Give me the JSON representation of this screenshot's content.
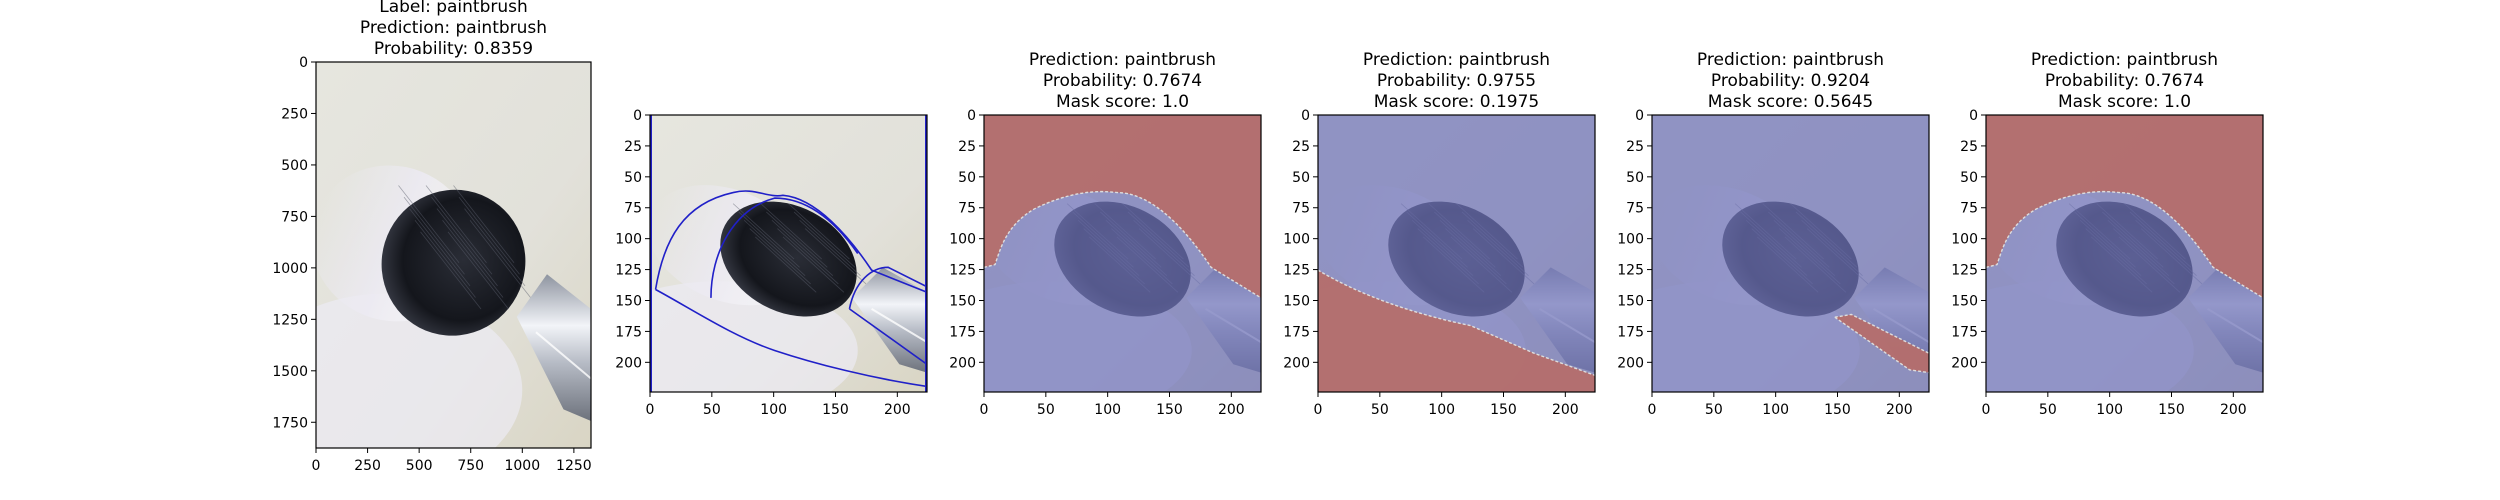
{
  "figure": {
    "palette": {
      "background_wall": "#e2e1da",
      "bristle_dark": "#14161c",
      "bristle_light": "#eceaf2",
      "ferrule_metal": "#b7bcc6",
      "contour_line": "#2020c8",
      "mask_kept": "#6f73b8",
      "mask_removed": "#b56e6c",
      "mask_boundary": "#dddddd"
    }
  },
  "chart_data": [
    {
      "type": "image",
      "panel": "original",
      "title_lines": [
        "Label: paintbrush",
        "Prediction: paintbrush",
        "Probability: 0.8359"
      ],
      "xlim": [
        0,
        1333
      ],
      "ylim": [
        1875,
        0
      ],
      "xticks": [
        0,
        250,
        500,
        750,
        1000,
        1250
      ],
      "yticks": [
        0,
        250,
        500,
        750,
        1000,
        1250,
        1500,
        1750
      ],
      "xtick_labels": [
        "0",
        "250",
        "500",
        "750",
        "1000",
        "1250"
      ],
      "ytick_labels": [
        "0",
        "250",
        "500",
        "750",
        "1000",
        "1250",
        "1500",
        "1750"
      ]
    },
    {
      "type": "image",
      "panel": "segment-contours",
      "title_lines": [],
      "xlim": [
        0,
        224
      ],
      "ylim": [
        224,
        0
      ],
      "xticks": [
        0,
        50,
        100,
        150,
        200
      ],
      "yticks": [
        0,
        25,
        50,
        75,
        100,
        125,
        150,
        175,
        200
      ],
      "xtick_labels": [
        "0",
        "50",
        "100",
        "150",
        "200"
      ],
      "ytick_labels": [
        "0",
        "25",
        "50",
        "75",
        "100",
        "125",
        "150",
        "175",
        "200"
      ]
    },
    {
      "type": "image",
      "panel": "mask-1",
      "title_lines": [
        "Prediction: paintbrush",
        "Probability: 0.7674",
        "Mask score: 1.0"
      ],
      "mask_variant": "top-removed",
      "xlim": [
        0,
        224
      ],
      "ylim": [
        224,
        0
      ],
      "xticks": [
        0,
        50,
        100,
        150,
        200
      ],
      "yticks": [
        0,
        25,
        50,
        75,
        100,
        125,
        150,
        175,
        200
      ],
      "xtick_labels": [
        "0",
        "50",
        "100",
        "150",
        "200"
      ],
      "ytick_labels": [
        "0",
        "25",
        "50",
        "75",
        "100",
        "125",
        "150",
        "175",
        "200"
      ]
    },
    {
      "type": "image",
      "panel": "mask-2",
      "title_lines": [
        "Prediction: paintbrush",
        "Probability: 0.9755",
        "Mask score: 0.1975"
      ],
      "mask_variant": "bottom-removed",
      "xlim": [
        0,
        224
      ],
      "ylim": [
        224,
        0
      ],
      "xticks": [
        0,
        50,
        100,
        150,
        200
      ],
      "yticks": [
        0,
        25,
        50,
        75,
        100,
        125,
        150,
        175,
        200
      ],
      "xtick_labels": [
        "0",
        "50",
        "100",
        "150",
        "200"
      ],
      "ytick_labels": [
        "0",
        "25",
        "50",
        "75",
        "100",
        "125",
        "150",
        "175",
        "200"
      ]
    },
    {
      "type": "image",
      "panel": "mask-3",
      "title_lines": [
        "Prediction: paintbrush",
        "Probability: 0.9204",
        "Mask score: 0.5645"
      ],
      "mask_variant": "handle-strip-removed",
      "xlim": [
        0,
        224
      ],
      "ylim": [
        224,
        0
      ],
      "xticks": [
        0,
        50,
        100,
        150,
        200
      ],
      "yticks": [
        0,
        25,
        50,
        75,
        100,
        125,
        150,
        175,
        200
      ],
      "xtick_labels": [
        "0",
        "50",
        "100",
        "150",
        "200"
      ],
      "ytick_labels": [
        "0",
        "25",
        "50",
        "75",
        "100",
        "125",
        "150",
        "175",
        "200"
      ]
    },
    {
      "type": "image",
      "panel": "mask-4",
      "title_lines": [
        "Prediction: paintbrush",
        "Probability: 0.7674",
        "Mask score: 1.0"
      ],
      "mask_variant": "top-removed",
      "xlim": [
        0,
        224
      ],
      "ylim": [
        224,
        0
      ],
      "xticks": [
        0,
        50,
        100,
        150,
        200
      ],
      "yticks": [
        0,
        25,
        50,
        75,
        100,
        125,
        150,
        175,
        200
      ],
      "xtick_labels": [
        "0",
        "50",
        "100",
        "150",
        "200"
      ],
      "ytick_labels": [
        "0",
        "25",
        "50",
        "75",
        "100",
        "125",
        "150",
        "175",
        "200"
      ]
    }
  ]
}
